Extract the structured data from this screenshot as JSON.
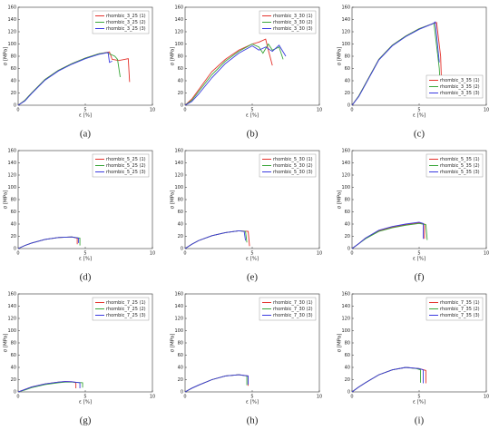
{
  "chart_data": [
    {
      "type": "line",
      "caption": "(a)",
      "xlabel": "ε [%]",
      "ylabel": "σ [MPa]",
      "xlim": [
        0,
        10
      ],
      "ylim": [
        0,
        160
      ],
      "xticks": [
        0,
        5,
        10
      ],
      "yticks": [
        0,
        20,
        40,
        60,
        80,
        100,
        120,
        140,
        160
      ],
      "legend": "upper right",
      "series": [
        {
          "name": "rhombic_3_25 (1)",
          "color": "#e4312b",
          "x": [
            0,
            0.5,
            1,
            2,
            3,
            4,
            5,
            6,
            6.8,
            7.0,
            7.5,
            8.2,
            8.3
          ],
          "values": [
            0,
            8,
            20,
            42,
            57,
            68,
            77,
            84,
            87,
            75,
            73,
            76,
            38
          ]
        },
        {
          "name": "rhombic_3_25 (2)",
          "color": "#3aa63a",
          "x": [
            0,
            0.5,
            1,
            2,
            3,
            4,
            5,
            6,
            6.6,
            7.2,
            7.4,
            7.6
          ],
          "values": [
            0,
            8,
            20,
            42,
            57,
            68,
            77,
            84,
            86,
            80,
            75,
            46
          ]
        },
        {
          "name": "rhombic_3_25 (3)",
          "color": "#3a3ae0",
          "x": [
            0,
            0.5,
            1,
            2,
            3,
            4,
            5,
            6,
            6.7,
            6.8,
            7.0
          ],
          "values": [
            0,
            7,
            19,
            41,
            56,
            67,
            76,
            83,
            86,
            70,
            72
          ]
        }
      ]
    },
    {
      "type": "line",
      "caption": "(b)",
      "xlabel": "ε [%]",
      "ylabel": "σ [MPa]",
      "xlim": [
        0,
        10
      ],
      "ylim": [
        0,
        160
      ],
      "xticks": [
        0,
        5,
        10
      ],
      "yticks": [
        0,
        20,
        40,
        60,
        80,
        100,
        120,
        140,
        160
      ],
      "legend": "upper right",
      "series": [
        {
          "name": "rhombic_3_30 (1)",
          "color": "#e4312b",
          "x": [
            0,
            0.5,
            1,
            2,
            3,
            4,
            5,
            5.5,
            6,
            6.2,
            6.5
          ],
          "values": [
            0,
            10,
            25,
            55,
            75,
            90,
            100,
            103,
            108,
            90,
            65
          ]
        },
        {
          "name": "rhombic_3_30 (2)",
          "color": "#3aa63a",
          "x": [
            0,
            0.5,
            1,
            2,
            3,
            4,
            5,
            5.5,
            5.8,
            6.2,
            6.5,
            7,
            7.3
          ],
          "values": [
            0,
            8,
            22,
            50,
            72,
            88,
            100,
            95,
            85,
            100,
            90,
            95,
            75
          ]
        },
        {
          "name": "rhombic_3_30 (3)",
          "color": "#3a3ae0",
          "x": [
            0,
            0.5,
            1,
            2,
            3,
            4,
            5,
            5.5,
            6,
            6.5,
            7,
            7.5
          ],
          "values": [
            0,
            6,
            18,
            45,
            68,
            85,
            97,
            90,
            95,
            88,
            98,
            80
          ]
        }
      ]
    },
    {
      "type": "line",
      "caption": "(c)",
      "xlabel": "ε [%]",
      "ylabel": "σ [MPa]",
      "xlim": [
        0,
        10
      ],
      "ylim": [
        0,
        160
      ],
      "xticks": [
        0,
        5,
        10
      ],
      "yticks": [
        0,
        20,
        40,
        60,
        80,
        100,
        120,
        140,
        160
      ],
      "legend": "lower right",
      "series": [
        {
          "name": "rhombic_3_35 (1)",
          "color": "#e4312b",
          "x": [
            0,
            0.5,
            1,
            2,
            3,
            4,
            5,
            6,
            6.3,
            6.6,
            6.7
          ],
          "values": [
            0,
            15,
            35,
            75,
            98,
            113,
            125,
            133,
            135,
            80,
            12
          ]
        },
        {
          "name": "rhombic_3_35 (2)",
          "color": "#3aa63a",
          "x": [
            0,
            0.5,
            1,
            2,
            3,
            4,
            5,
            6,
            6.1,
            6.5,
            6.6
          ],
          "values": [
            0,
            15,
            35,
            75,
            98,
            113,
            125,
            133,
            134,
            60,
            20
          ]
        },
        {
          "name": "rhombic_3_35 (3)",
          "color": "#3a3ae0",
          "x": [
            0,
            0.5,
            1,
            2,
            3,
            4,
            5,
            6,
            6.2,
            6.5
          ],
          "values": [
            0,
            14,
            34,
            74,
            97,
            112,
            124,
            133,
            136,
            70
          ]
        }
      ]
    },
    {
      "type": "line",
      "caption": "(d)",
      "xlabel": "ε [%]",
      "ylabel": "σ [MPa]",
      "xlim": [
        0,
        10
      ],
      "ylim": [
        0,
        160
      ],
      "xticks": [
        0,
        5,
        10
      ],
      "yticks": [
        0,
        20,
        40,
        60,
        80,
        100,
        120,
        140,
        160
      ],
      "legend": "upper right",
      "series": [
        {
          "name": "rhombic_5_25 (1)",
          "color": "#e4312b",
          "x": [
            0,
            0.5,
            1,
            1.5,
            2,
            3,
            4,
            4.4,
            4.4
          ],
          "values": [
            0,
            5,
            9,
            12,
            15,
            18,
            19,
            17,
            7
          ]
        },
        {
          "name": "rhombic_5_25 (2)",
          "color": "#3aa63a",
          "x": [
            0,
            0.5,
            1,
            2,
            3,
            4,
            4.6,
            4.6
          ],
          "values": [
            0,
            5,
            9,
            15,
            18,
            19,
            17,
            5
          ]
        },
        {
          "name": "rhombic_5_25 (3)",
          "color": "#3a3ae0",
          "x": [
            0,
            0.5,
            1,
            2,
            3,
            4,
            4.5,
            4.5
          ],
          "values": [
            0,
            5,
            9,
            15,
            18,
            19,
            17,
            9
          ]
        }
      ]
    },
    {
      "type": "line",
      "caption": "(e)",
      "xlabel": "ε [%]",
      "ylabel": "σ [MPa]",
      "xlim": [
        0,
        10
      ],
      "ylim": [
        0,
        160
      ],
      "xticks": [
        0,
        5,
        10
      ],
      "yticks": [
        0,
        20,
        40,
        60,
        80,
        100,
        120,
        140,
        160
      ],
      "legend": "upper right",
      "series": [
        {
          "name": "rhombic_5_30 (1)",
          "color": "#e4312b",
          "x": [
            0,
            0.5,
            1,
            2,
            3,
            4,
            4.7,
            4.8
          ],
          "values": [
            0,
            7,
            13,
            21,
            26,
            29,
            28,
            4
          ]
        },
        {
          "name": "rhombic_5_30 (2)",
          "color": "#3aa63a",
          "x": [
            0,
            0.5,
            1,
            2,
            3,
            4,
            4.5,
            4.6
          ],
          "values": [
            0,
            7,
            13,
            21,
            26,
            29,
            28,
            10
          ]
        },
        {
          "name": "rhombic_5_30 (3)",
          "color": "#3a3ae0",
          "x": [
            0,
            0.5,
            1,
            2,
            3,
            4,
            4.4,
            4.5
          ],
          "values": [
            0,
            7,
            13,
            21,
            26,
            29,
            28,
            13
          ]
        }
      ]
    },
    {
      "type": "line",
      "caption": "(f)",
      "xlabel": "ε [%]",
      "ylabel": "σ [MPa]",
      "xlim": [
        0,
        10
      ],
      "ylim": [
        0,
        160
      ],
      "xticks": [
        0,
        5,
        10
      ],
      "yticks": [
        0,
        20,
        40,
        60,
        80,
        100,
        120,
        140,
        160
      ],
      "legend": "upper right",
      "series": [
        {
          "name": "rhombic_5_35 (1)",
          "color": "#e4312b",
          "x": [
            0,
            0.5,
            1,
            2,
            3,
            4,
            5,
            5.4,
            5.4
          ],
          "values": [
            0,
            8,
            17,
            29,
            35,
            39,
            42,
            40,
            16
          ]
        },
        {
          "name": "rhombic_5_35 (2)",
          "color": "#3aa63a",
          "x": [
            0,
            0.5,
            1,
            2,
            3,
            4,
            5,
            5.5,
            5.6
          ],
          "values": [
            0,
            8,
            16,
            28,
            34,
            38,
            41,
            39,
            14
          ]
        },
        {
          "name": "rhombic_5_35 (3)",
          "color": "#3a3ae0",
          "x": [
            0,
            0.5,
            1,
            2,
            3,
            4,
            5,
            5.3,
            5.3
          ],
          "values": [
            0,
            8,
            17,
            30,
            36,
            40,
            43,
            41,
            16
          ]
        }
      ]
    },
    {
      "type": "line",
      "caption": "(g)",
      "xlabel": "ε [%]",
      "ylabel": "σ [MPa]",
      "xlim": [
        0,
        10
      ],
      "ylim": [
        0,
        160
      ],
      "xticks": [
        0,
        5,
        10
      ],
      "yticks": [
        0,
        20,
        40,
        60,
        80,
        100,
        120,
        140,
        160
      ],
      "legend": "upper right",
      "series": [
        {
          "name": "rhombic_7_25 (1)",
          "color": "#e4312b",
          "x": [
            0,
            0.5,
            1,
            2,
            3,
            3.5,
            4,
            4.3,
            4.3
          ],
          "values": [
            0,
            4,
            8,
            13,
            16,
            17,
            16.5,
            15,
            6
          ]
        },
        {
          "name": "rhombic_7_25 (2)",
          "color": "#3aa63a",
          "x": [
            0,
            0.5,
            1,
            2,
            3,
            3.5,
            4,
            4.8,
            4.8
          ],
          "values": [
            0,
            3,
            7,
            12,
            15,
            16,
            16,
            15,
            7
          ]
        },
        {
          "name": "rhombic_7_25 (3)",
          "color": "#3a3ae0",
          "x": [
            0,
            0.5,
            1,
            2,
            3,
            3.5,
            4,
            4.6,
            4.6
          ],
          "values": [
            0,
            4,
            8,
            13,
            16,
            17,
            16.5,
            15,
            6
          ]
        }
      ]
    },
    {
      "type": "line",
      "caption": "(h)",
      "xlabel": "ε [%]",
      "ylabel": "σ [MPa]",
      "xlim": [
        0,
        10
      ],
      "ylim": [
        0,
        160
      ],
      "xticks": [
        0,
        5,
        10
      ],
      "yticks": [
        0,
        20,
        40,
        60,
        80,
        100,
        120,
        140,
        160
      ],
      "legend": "upper right",
      "series": [
        {
          "name": "rhombic_7_30 (1)",
          "color": "#e4312b",
          "x": [
            0,
            0.5,
            1,
            2,
            3,
            4,
            4.7,
            4.7
          ],
          "values": [
            0,
            6,
            11,
            20,
            26,
            28,
            26,
            10
          ]
        },
        {
          "name": "rhombic_7_30 (2)",
          "color": "#3aa63a",
          "x": [
            0,
            0.5,
            1,
            2,
            3,
            4,
            4.6,
            4.6
          ],
          "values": [
            0,
            6,
            11,
            20,
            26,
            28,
            26,
            11
          ]
        },
        {
          "name": "rhombic_7_30 (3)",
          "color": "#3a3ae0",
          "x": [
            0,
            0.5,
            1,
            2,
            3,
            4,
            4.7,
            4.7
          ],
          "values": [
            0,
            6,
            11,
            20,
            26,
            28,
            26,
            12
          ]
        }
      ]
    },
    {
      "type": "line",
      "caption": "(i)",
      "xlabel": "ε [%]",
      "ylabel": "σ [MPa]",
      "xlim": [
        0,
        10
      ],
      "ylim": [
        0,
        160
      ],
      "xticks": [
        0,
        5,
        10
      ],
      "yticks": [
        0,
        20,
        40,
        60,
        80,
        100,
        120,
        140,
        160
      ],
      "legend": "upper right",
      "series": [
        {
          "name": "rhombic_7_35 (1)",
          "color": "#e4312b",
          "x": [
            0,
            0.5,
            1,
            2,
            3,
            4,
            5,
            5.5,
            5.5
          ],
          "values": [
            0,
            8,
            15,
            28,
            36,
            40,
            38,
            35,
            14
          ]
        },
        {
          "name": "rhombic_7_35 (2)",
          "color": "#3aa63a",
          "x": [
            0,
            0.5,
            1,
            2,
            3,
            4,
            4.8,
            5.1,
            5.1
          ],
          "values": [
            0,
            8,
            15,
            28,
            36,
            40,
            38,
            36,
            15
          ]
        },
        {
          "name": "rhombic_7_35 (3)",
          "color": "#3a3ae0",
          "x": [
            0,
            0.5,
            1,
            2,
            3,
            4,
            5,
            5.3,
            5.3
          ],
          "values": [
            0,
            8,
            15,
            28,
            36,
            40,
            38,
            36,
            14
          ]
        }
      ]
    }
  ]
}
